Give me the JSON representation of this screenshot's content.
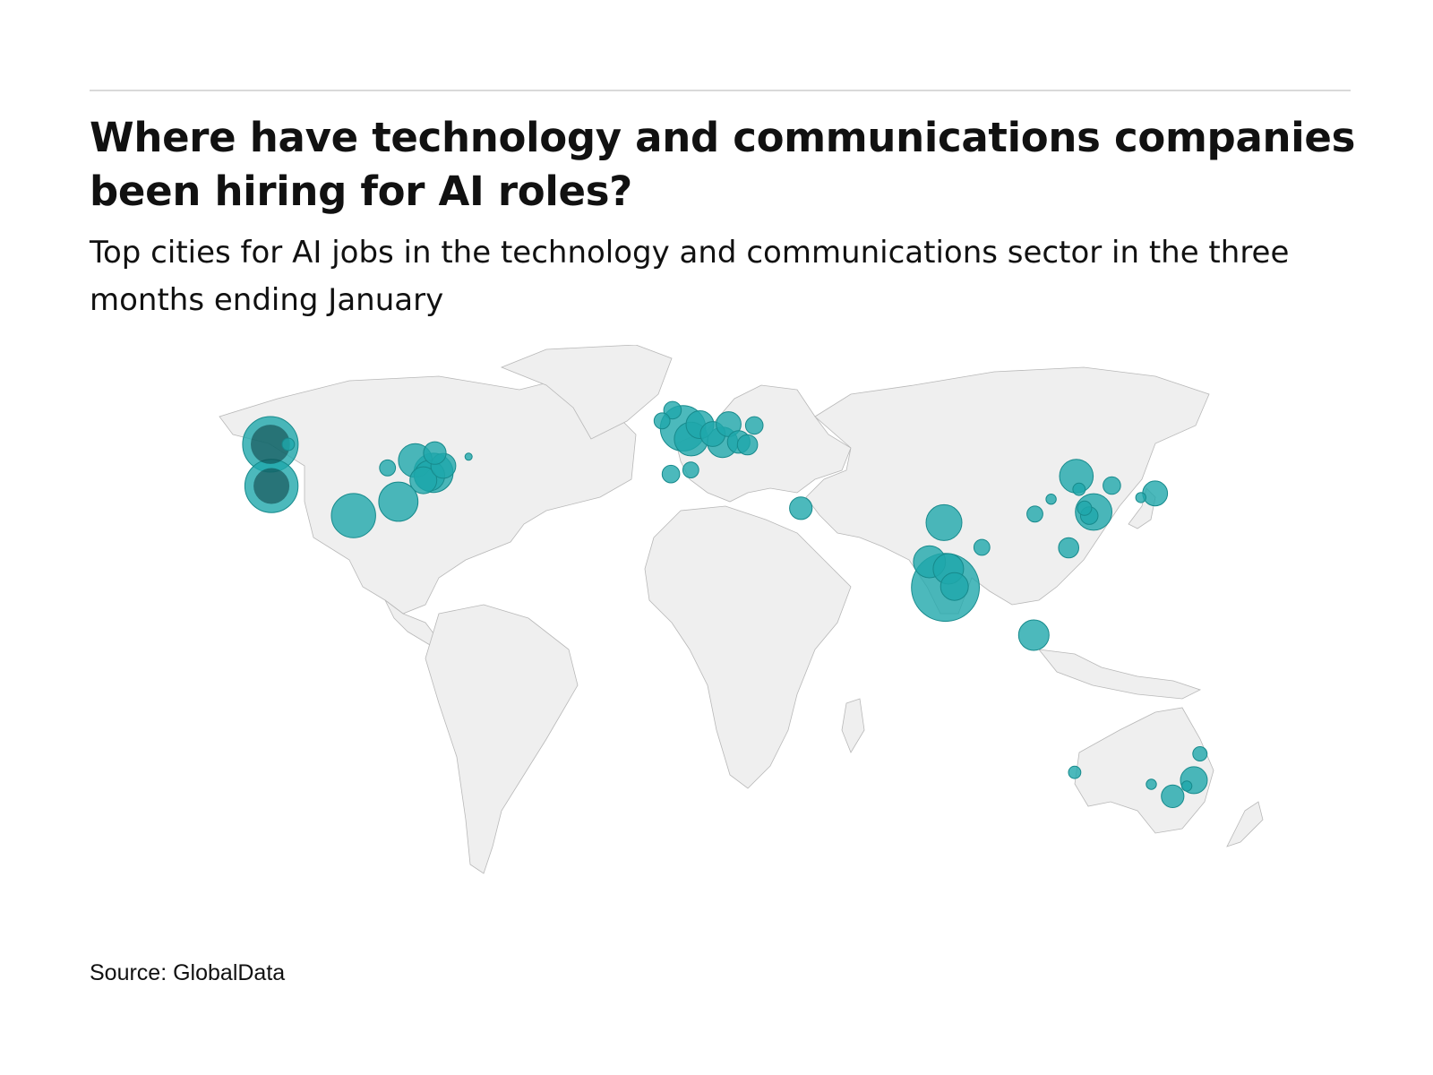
{
  "title": "Where have technology and communications companies been hiring for AI roles?",
  "subtitle": "Top cities for AI jobs in the technology and communications sector in the three months ending January",
  "source": "Source: GlobalData",
  "colors": {
    "bubble": "#1fa8ab",
    "bubble_dark": "#0b3d40",
    "land": "#efefef",
    "border": "#b8b8b8"
  },
  "chart_data": {
    "type": "scatter",
    "encoding": "proportional-symbol map; bubble area = relative number of AI job postings",
    "points": [
      {
        "lon": -122.3,
        "lat": 47.6,
        "value": 60
      },
      {
        "lon": -122.3,
        "lat": 47.6,
        "value": 30,
        "tone": "dark"
      },
      {
        "lon": -117.0,
        "lat": 47.6,
        "value": 3
      },
      {
        "lon": -122.0,
        "lat": 37.5,
        "value": 55
      },
      {
        "lon": -122.0,
        "lat": 37.5,
        "value": 25,
        "tone": "dark"
      },
      {
        "lon": -97.7,
        "lat": 30.3,
        "value": 38
      },
      {
        "lon": -84.4,
        "lat": 33.7,
        "value": 30
      },
      {
        "lon": -87.6,
        "lat": 41.9,
        "value": 5
      },
      {
        "lon": -79.4,
        "lat": 43.7,
        "value": 22
      },
      {
        "lon": -75.2,
        "lat": 40.0,
        "value": 18
      },
      {
        "lon": -74.0,
        "lat": 40.7,
        "value": 30
      },
      {
        "lon": -71.1,
        "lat": 42.4,
        "value": 12
      },
      {
        "lon": -73.6,
        "lat": 45.5,
        "value": 10
      },
      {
        "lon": -63.6,
        "lat": 44.6,
        "value": 1
      },
      {
        "lon": -77.0,
        "lat": 38.9,
        "value": 14
      },
      {
        "lon": -0.1,
        "lat": 51.5,
        "value": 40
      },
      {
        "lon": -3.2,
        "lat": 55.9,
        "value": 6
      },
      {
        "lon": -6.3,
        "lat": 53.3,
        "value": 5
      },
      {
        "lon": 2.3,
        "lat": 48.9,
        "value": 22
      },
      {
        "lon": 4.9,
        "lat": 52.4,
        "value": 15
      },
      {
        "lon": 8.7,
        "lat": 50.1,
        "value": 12
      },
      {
        "lon": 11.6,
        "lat": 48.1,
        "value": 18
      },
      {
        "lon": 13.4,
        "lat": 52.5,
        "value": 12
      },
      {
        "lon": 16.4,
        "lat": 48.2,
        "value": 10
      },
      {
        "lon": 19.0,
        "lat": 47.5,
        "value": 8
      },
      {
        "lon": 21.0,
        "lat": 52.2,
        "value": 6
      },
      {
        "lon": -3.7,
        "lat": 40.4,
        "value": 6
      },
      {
        "lon": 2.2,
        "lat": 41.4,
        "value": 5
      },
      {
        "lon": 34.8,
        "lat": 32.1,
        "value": 10
      },
      {
        "lon": 77.2,
        "lat": 28.6,
        "value": 25
      },
      {
        "lon": 72.9,
        "lat": 19.1,
        "value": 20
      },
      {
        "lon": 78.5,
        "lat": 17.4,
        "value": 18
      },
      {
        "lon": 77.6,
        "lat": 12.9,
        "value": 90
      },
      {
        "lon": 80.3,
        "lat": 13.1,
        "value": 15
      },
      {
        "lon": 88.4,
        "lat": 22.6,
        "value": 5
      },
      {
        "lon": 103.8,
        "lat": 1.3,
        "value": 18
      },
      {
        "lon": 116.4,
        "lat": 39.9,
        "value": 22
      },
      {
        "lon": 104.1,
        "lat": 30.7,
        "value": 5
      },
      {
        "lon": 108.9,
        "lat": 34.3,
        "value": 2
      },
      {
        "lon": 121.5,
        "lat": 31.2,
        "value": 26
      },
      {
        "lon": 120.2,
        "lat": 30.3,
        "value": 6
      },
      {
        "lon": 118.8,
        "lat": 32.1,
        "value": 4
      },
      {
        "lon": 114.1,
        "lat": 22.5,
        "value": 8
      },
      {
        "lon": 126.9,
        "lat": 37.6,
        "value": 6
      },
      {
        "lon": 117.2,
        "lat": 36.7,
        "value": 3
      },
      {
        "lon": 139.7,
        "lat": 35.7,
        "value": 12
      },
      {
        "lon": 135.5,
        "lat": 34.7,
        "value": 2
      },
      {
        "lon": 151.2,
        "lat": -33.9,
        "value": 14
      },
      {
        "lon": 144.9,
        "lat": -37.8,
        "value": 10
      },
      {
        "lon": 149.1,
        "lat": -35.3,
        "value": 2
      },
      {
        "lon": 153.0,
        "lat": -27.5,
        "value": 4
      },
      {
        "lon": 115.9,
        "lat": -32.0,
        "value": 3
      },
      {
        "lon": 138.6,
        "lat": -34.9,
        "value": 2
      }
    ]
  }
}
